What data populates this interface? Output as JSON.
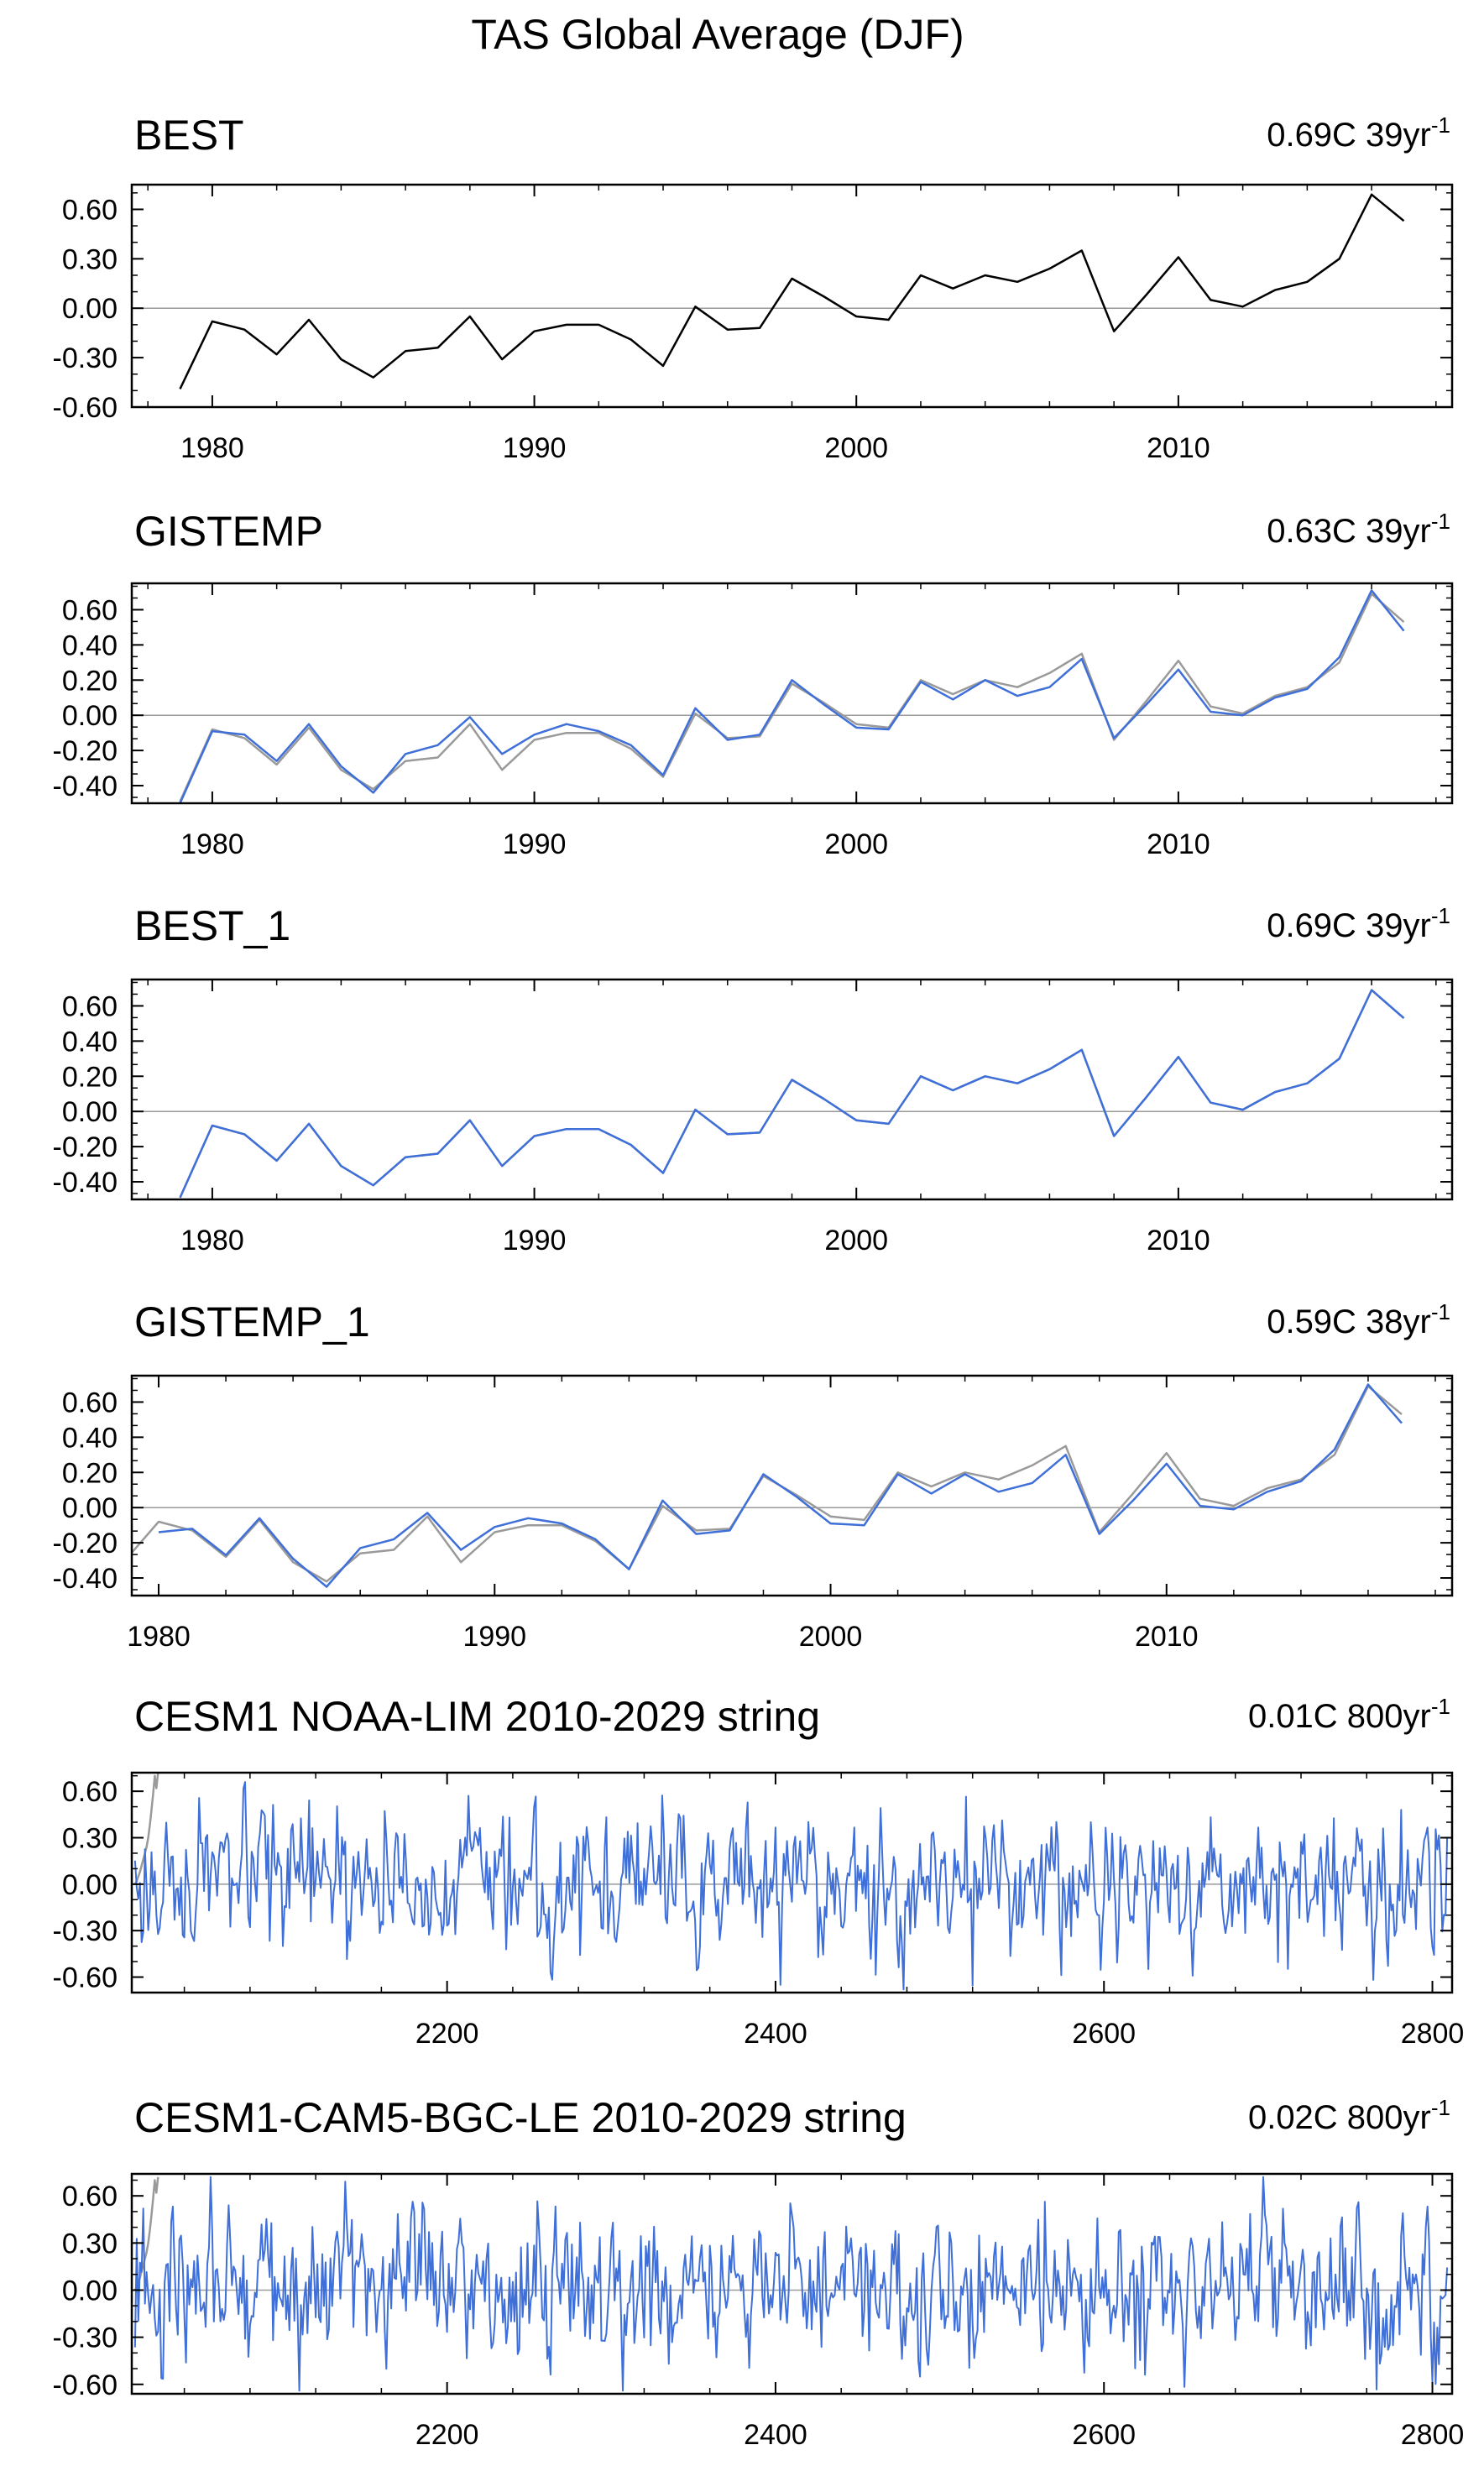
{
  "main_title": "TAS Global Average (DJF)",
  "chart_data": [
    {
      "type": "line",
      "title": "BEST",
      "stat_value": "0.69C 39yr",
      "stat_exp": "-1",
      "xlim": [
        1977.5,
        2018.5
      ],
      "ylim": [
        -0.6,
        0.75
      ],
      "xticks": [
        1980,
        1990,
        2000,
        2010
      ],
      "yticks": [
        0.6,
        0.3,
        0.0,
        -0.3,
        -0.6
      ],
      "ytick_labels": [
        "0.60",
        "0.30",
        "0.00",
        "-0.30",
        "-0.60"
      ],
      "x_start": 1979,
      "x_step": 1,
      "reference_line": 0,
      "series": [
        {
          "color": "#000000",
          "values": [
            -0.49,
            -0.08,
            -0.13,
            -0.28,
            -0.07,
            -0.31,
            -0.42,
            -0.26,
            -0.24,
            -0.05,
            -0.31,
            -0.14,
            -0.1,
            -0.1,
            -0.19,
            -0.35,
            0.01,
            -0.13,
            -0.12,
            0.18,
            0.07,
            -0.05,
            -0.07,
            0.2,
            0.12,
            0.2,
            0.16,
            0.24,
            0.35,
            -0.14,
            0.08,
            0.31,
            0.05,
            0.01,
            0.11,
            0.16,
            0.3,
            0.69,
            0.53
          ]
        }
      ]
    },
    {
      "type": "line",
      "title": "GISTEMP",
      "stat_value": "0.63C 39yr",
      "stat_exp": "-1",
      "xlim": [
        1977.5,
        2018.5
      ],
      "ylim": [
        -0.5,
        0.75
      ],
      "xticks": [
        1980,
        1990,
        2000,
        2010
      ],
      "yticks": [
        0.6,
        0.4,
        0.2,
        0.0,
        -0.2,
        -0.4
      ],
      "ytick_labels": [
        "0.60",
        "0.40",
        "0.20",
        "0.00",
        "-0.20",
        "-0.40"
      ],
      "x_start": 1979,
      "x_step": 1,
      "reference_line": 0,
      "series": [
        {
          "color": "#9a9a9a",
          "values": [
            -0.49,
            -0.08,
            -0.13,
            -0.28,
            -0.07,
            -0.31,
            -0.42,
            -0.26,
            -0.24,
            -0.05,
            -0.31,
            -0.14,
            -0.1,
            -0.1,
            -0.19,
            -0.35,
            0.01,
            -0.13,
            -0.12,
            0.18,
            0.07,
            -0.05,
            -0.07,
            0.2,
            0.12,
            0.2,
            0.16,
            0.24,
            0.35,
            -0.14,
            0.08,
            0.31,
            0.05,
            0.01,
            0.11,
            0.16,
            0.3,
            0.69,
            0.53
          ]
        },
        {
          "color": "#3f6fd8",
          "values": [
            -0.5,
            -0.09,
            -0.11,
            -0.26,
            -0.05,
            -0.29,
            -0.44,
            -0.22,
            -0.17,
            -0.01,
            -0.22,
            -0.11,
            -0.05,
            -0.09,
            -0.17,
            -0.34,
            0.04,
            -0.14,
            -0.11,
            0.2,
            0.06,
            -0.07,
            -0.08,
            0.19,
            0.09,
            0.2,
            0.11,
            0.16,
            0.32,
            -0.13,
            0.06,
            0.26,
            0.02,
            0.0,
            0.1,
            0.15,
            0.33,
            0.71,
            0.48
          ]
        }
      ]
    },
    {
      "type": "line",
      "title": "BEST_1",
      "stat_value": "0.69C 39yr",
      "stat_exp": "-1",
      "xlim": [
        1977.5,
        2018.5
      ],
      "ylim": [
        -0.5,
        0.75
      ],
      "xticks": [
        1980,
        1990,
        2000,
        2010
      ],
      "yticks": [
        0.6,
        0.4,
        0.2,
        0.0,
        -0.2,
        -0.4
      ],
      "ytick_labels": [
        "0.60",
        "0.40",
        "0.20",
        "0.00",
        "-0.20",
        "-0.40"
      ],
      "x_start": 1979,
      "x_step": 1,
      "reference_line": 0,
      "series": [
        {
          "color": "#9a9a9a",
          "values": [
            -0.49,
            -0.08,
            -0.13,
            -0.28,
            -0.07,
            -0.31,
            -0.42,
            -0.26,
            -0.24,
            -0.05,
            -0.31,
            -0.14,
            -0.1,
            -0.1,
            -0.19,
            -0.35,
            0.01,
            -0.13,
            -0.12,
            0.18,
            0.07,
            -0.05,
            -0.07,
            0.2,
            0.12,
            0.2,
            0.16,
            0.24,
            0.35,
            -0.14,
            0.08,
            0.31,
            0.05,
            0.01,
            0.11,
            0.16,
            0.3,
            0.69,
            0.53
          ]
        },
        {
          "color": "#3f6fd8",
          "values": [
            -0.49,
            -0.08,
            -0.13,
            -0.28,
            -0.07,
            -0.31,
            -0.42,
            -0.26,
            -0.24,
            -0.05,
            -0.31,
            -0.14,
            -0.1,
            -0.1,
            -0.19,
            -0.35,
            0.01,
            -0.13,
            -0.12,
            0.18,
            0.07,
            -0.05,
            -0.07,
            0.2,
            0.12,
            0.2,
            0.16,
            0.24,
            0.35,
            -0.14,
            0.08,
            0.31,
            0.05,
            0.01,
            0.11,
            0.16,
            0.3,
            0.69,
            0.53
          ]
        }
      ]
    },
    {
      "type": "line",
      "title": "GISTEMP_1",
      "stat_value": "0.59C 38yr",
      "stat_exp": "-1",
      "xlim": [
        1979.2,
        2018.5
      ],
      "ylim": [
        -0.5,
        0.75
      ],
      "xticks": [
        1980,
        1990,
        2000,
        2010
      ],
      "yticks": [
        0.6,
        0.4,
        0.2,
        0.0,
        -0.2,
        -0.4
      ],
      "ytick_labels": [
        "0.60",
        "0.40",
        "0.20",
        "0.00",
        "-0.20",
        "-0.40"
      ],
      "x_start": 1980,
      "x_step": 1,
      "reference_line": 0,
      "series": [
        {
          "color": "#9a9a9a",
          "x_start": 1979,
          "values": [
            -0.3,
            -0.08,
            -0.13,
            -0.28,
            -0.07,
            -0.31,
            -0.42,
            -0.26,
            -0.24,
            -0.05,
            -0.31,
            -0.14,
            -0.1,
            -0.1,
            -0.19,
            -0.35,
            0.01,
            -0.13,
            -0.12,
            0.18,
            0.07,
            -0.05,
            -0.07,
            0.2,
            0.12,
            0.2,
            0.16,
            0.24,
            0.35,
            -0.14,
            0.08,
            0.31,
            0.05,
            0.01,
            0.11,
            0.16,
            0.3,
            0.69,
            0.53
          ]
        },
        {
          "color": "#3f6fd8",
          "values": [
            -0.14,
            -0.12,
            -0.27,
            -0.06,
            -0.29,
            -0.45,
            -0.23,
            -0.18,
            -0.03,
            -0.24,
            -0.11,
            -0.06,
            -0.09,
            -0.18,
            -0.35,
            0.04,
            -0.15,
            -0.13,
            0.19,
            0.06,
            -0.09,
            -0.1,
            0.19,
            0.08,
            0.19,
            0.09,
            0.14,
            0.3,
            -0.15,
            0.04,
            0.25,
            0.01,
            -0.01,
            0.09,
            0.15,
            0.33,
            0.7,
            0.48
          ]
        }
      ]
    },
    {
      "type": "line",
      "title": "CESM1 NOAA-LIM 2010-2029 string",
      "stat_value": "0.01C 800yr",
      "stat_exp": "-1",
      "xlim": [
        2008,
        2812
      ],
      "ylim": [
        -0.7,
        0.72
      ],
      "xticks": [
        2200,
        2400,
        2600,
        2800
      ],
      "yticks": [
        0.6,
        0.3,
        0.0,
        -0.3,
        -0.6
      ],
      "ytick_labels": [
        "0.60",
        "0.30",
        "0.00",
        "-0.30",
        "-0.60"
      ],
      "x_start": 2010,
      "x_step": 1,
      "reference_line": 0,
      "series": [
        {
          "color": "#9a9a9a",
          "x_start": 2010,
          "values": [
            0.0,
            0.02,
            0.05,
            0.08,
            0.12,
            0.16,
            0.2,
            0.24,
            0.3,
            0.38,
            0.48,
            0.58,
            0.7,
            0.62,
            0.72
          ]
        },
        {
          "color": "#3f6fd8",
          "seed": 17,
          "n": 800,
          "amp": 0.21,
          "y_clip": [
            -0.68,
            0.66
          ]
        }
      ]
    },
    {
      "type": "line",
      "title": "CESM1-CAM5-BGC-LE 2010-2029 string",
      "stat_value": "0.02C 800yr",
      "stat_exp": "-1",
      "xlim": [
        2008,
        2812
      ],
      "ylim": [
        -0.66,
        0.74
      ],
      "xticks": [
        2200,
        2400,
        2600,
        2800
      ],
      "yticks": [
        0.6,
        0.3,
        0.0,
        -0.3,
        -0.6
      ],
      "ytick_labels": [
        "0.60",
        "0.30",
        "0.00",
        "-0.30",
        "-0.60"
      ],
      "x_start": 2010,
      "x_step": 1,
      "reference_line": 0,
      "series": [
        {
          "color": "#9a9a9a",
          "x_start": 2010,
          "values": [
            0.0,
            0.02,
            0.05,
            0.08,
            0.12,
            0.16,
            0.2,
            0.24,
            0.3,
            0.38,
            0.48,
            0.58,
            0.7,
            0.62,
            0.72
          ]
        },
        {
          "color": "#3f6fd8",
          "seed": 91,
          "n": 800,
          "amp": 0.23,
          "y_clip": [
            -0.64,
            0.72
          ]
        }
      ]
    }
  ]
}
